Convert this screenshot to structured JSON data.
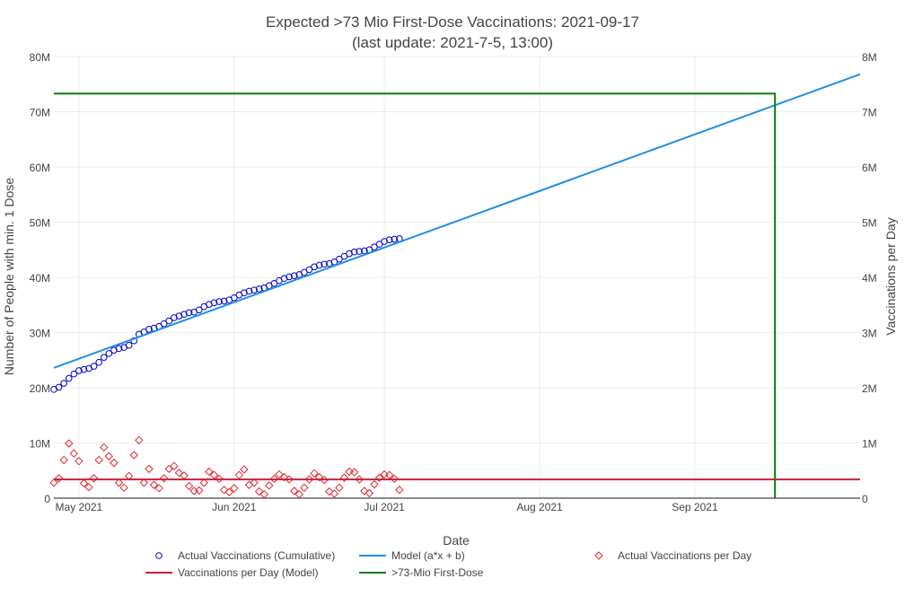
{
  "chart_data": {
    "type": "line",
    "title": "Expected >73 Mio First-Dose Vaccinations: 2021-09-17",
    "subtitle": "(last update: 2021-7-5, 13:00)",
    "xlabel": "Date",
    "ylabel": "Number of People with min. 1 Dose",
    "y2label": "Vaccinations per Day",
    "x_range": [
      "2021-04-26",
      "2021-10-04"
    ],
    "x_ticks": [
      {
        "date": "2021-05-01",
        "label": "May 2021"
      },
      {
        "date": "2021-06-01",
        "label": "Jun 2021"
      },
      {
        "date": "2021-07-01",
        "label": "Jul 2021"
      },
      {
        "date": "2021-08-01",
        "label": "Aug 2021"
      },
      {
        "date": "2021-09-01",
        "label": "Sep 2021"
      }
    ],
    "ylim": [
      0,
      80000000
    ],
    "y_ticks": [
      {
        "value": 0,
        "label": "0"
      },
      {
        "value": 10000000,
        "label": "10M"
      },
      {
        "value": 20000000,
        "label": "20M"
      },
      {
        "value": 30000000,
        "label": "30M"
      },
      {
        "value": 40000000,
        "label": "40M"
      },
      {
        "value": 50000000,
        "label": "50M"
      },
      {
        "value": 60000000,
        "label": "60M"
      },
      {
        "value": 70000000,
        "label": "70M"
      },
      {
        "value": 80000000,
        "label": "80M"
      }
    ],
    "y2lim": [
      0,
      8000000
    ],
    "y2_ticks": [
      {
        "value": 0,
        "label": "0"
      },
      {
        "value": 1000000,
        "label": "1M"
      },
      {
        "value": 2000000,
        "label": "2M"
      },
      {
        "value": 3000000,
        "label": "3M"
      },
      {
        "value": 4000000,
        "label": "4M"
      },
      {
        "value": 5000000,
        "label": "5M"
      },
      {
        "value": 6000000,
        "label": "6M"
      },
      {
        "value": 7000000,
        "label": "7M"
      },
      {
        "value": 8000000,
        "label": "8M"
      }
    ],
    "grid": true,
    "legend_position": "bottom",
    "series": [
      {
        "name": "Actual Vaccinations (Cumulative)",
        "kind": "markers",
        "marker": "circle-open",
        "axis": "y",
        "color": "#0000cd",
        "x": [
          "2021-04-26",
          "2021-04-27",
          "2021-04-28",
          "2021-04-29",
          "2021-04-30",
          "2021-05-01",
          "2021-05-02",
          "2021-05-03",
          "2021-05-04",
          "2021-05-05",
          "2021-05-06",
          "2021-05-07",
          "2021-05-08",
          "2021-05-09",
          "2021-05-10",
          "2021-05-11",
          "2021-05-12",
          "2021-05-13",
          "2021-05-14",
          "2021-05-15",
          "2021-05-16",
          "2021-05-17",
          "2021-05-18",
          "2021-05-19",
          "2021-05-20",
          "2021-05-21",
          "2021-05-22",
          "2021-05-23",
          "2021-05-24",
          "2021-05-25",
          "2021-05-26",
          "2021-05-27",
          "2021-05-28",
          "2021-05-29",
          "2021-05-30",
          "2021-05-31",
          "2021-06-01",
          "2021-06-02",
          "2021-06-03",
          "2021-06-04",
          "2021-06-05",
          "2021-06-06",
          "2021-06-07",
          "2021-06-08",
          "2021-06-09",
          "2021-06-10",
          "2021-06-11",
          "2021-06-12",
          "2021-06-13",
          "2021-06-14",
          "2021-06-15",
          "2021-06-16",
          "2021-06-17",
          "2021-06-18",
          "2021-06-19",
          "2021-06-20",
          "2021-06-21",
          "2021-06-22",
          "2021-06-23",
          "2021-06-24",
          "2021-06-25",
          "2021-06-26",
          "2021-06-27",
          "2021-06-28",
          "2021-06-29",
          "2021-06-30",
          "2021-07-01",
          "2021-07-02",
          "2021-07-03",
          "2021-07-04"
        ],
        "y": [
          19700000,
          20100000,
          20800000,
          21700000,
          22500000,
          23100000,
          23300000,
          23500000,
          23900000,
          24600000,
          25500000,
          26200000,
          26800000,
          27100000,
          27300000,
          27700000,
          28500000,
          29700000,
          30100000,
          30600000,
          30800000,
          31100000,
          31600000,
          32100000,
          32700000,
          33000000,
          33300000,
          33600000,
          33700000,
          34100000,
          34700000,
          35100000,
          35400000,
          35600000,
          35700000,
          35900000,
          36300000,
          36800000,
          37200000,
          37500000,
          37700000,
          37900000,
          38100000,
          38500000,
          38900000,
          39400000,
          39800000,
          40100000,
          40300000,
          40500000,
          40900000,
          41400000,
          41900000,
          42200000,
          42400000,
          42500000,
          42800000,
          43300000,
          43800000,
          44300000,
          44600000,
          44700000,
          44800000,
          45000000,
          45500000,
          46000000,
          46500000,
          46800000,
          46900000,
          47000000
        ]
      },
      {
        "name": "Model (a*x + b)",
        "kind": "line",
        "axis": "y",
        "color": "#1f8fe6",
        "x": [
          "2021-04-26",
          "2021-10-04"
        ],
        "y": [
          23600000,
          76800000
        ]
      },
      {
        "name": "Actual Vaccinations per Day",
        "kind": "markers",
        "marker": "diamond-open",
        "axis": "y2",
        "color": "#e3262b",
        "x": [
          "2021-04-26",
          "2021-04-27",
          "2021-04-28",
          "2021-04-29",
          "2021-04-30",
          "2021-05-01",
          "2021-05-02",
          "2021-05-03",
          "2021-05-04",
          "2021-05-05",
          "2021-05-06",
          "2021-05-07",
          "2021-05-08",
          "2021-05-09",
          "2021-05-10",
          "2021-05-11",
          "2021-05-12",
          "2021-05-13",
          "2021-05-14",
          "2021-05-15",
          "2021-05-16",
          "2021-05-17",
          "2021-05-18",
          "2021-05-19",
          "2021-05-20",
          "2021-05-21",
          "2021-05-22",
          "2021-05-23",
          "2021-05-24",
          "2021-05-25",
          "2021-05-26",
          "2021-05-27",
          "2021-05-28",
          "2021-05-29",
          "2021-05-30",
          "2021-05-31",
          "2021-06-01",
          "2021-06-02",
          "2021-06-03",
          "2021-06-04",
          "2021-06-05",
          "2021-06-06",
          "2021-06-07",
          "2021-06-08",
          "2021-06-09",
          "2021-06-10",
          "2021-06-11",
          "2021-06-12",
          "2021-06-13",
          "2021-06-14",
          "2021-06-15",
          "2021-06-16",
          "2021-06-17",
          "2021-06-18",
          "2021-06-19",
          "2021-06-20",
          "2021-06-21",
          "2021-06-22",
          "2021-06-23",
          "2021-06-24",
          "2021-06-25",
          "2021-06-26",
          "2021-06-27",
          "2021-06-28",
          "2021-06-29",
          "2021-06-30",
          "2021-07-01",
          "2021-07-02",
          "2021-07-03",
          "2021-07-04"
        ],
        "y": [
          280000,
          360000,
          690000,
          990000,
          810000,
          670000,
          270000,
          200000,
          360000,
          690000,
          920000,
          760000,
          640000,
          280000,
          190000,
          400000,
          780000,
          1050000,
          280000,
          530000,
          240000,
          180000,
          360000,
          530000,
          580000,
          460000,
          410000,
          220000,
          130000,
          140000,
          280000,
          480000,
          420000,
          350000,
          150000,
          110000,
          180000,
          420000,
          520000,
          240000,
          280000,
          120000,
          70000,
          230000,
          350000,
          430000,
          380000,
          340000,
          130000,
          70000,
          190000,
          340000,
          450000,
          380000,
          330000,
          120000,
          80000,
          190000,
          370000,
          480000,
          470000,
          340000,
          130000,
          90000,
          250000,
          370000,
          430000,
          420000,
          350000,
          150000
        ]
      },
      {
        "name": "Vaccinations per Day (Model)",
        "kind": "line",
        "axis": "y2",
        "color": "#c8203a",
        "x": [
          "2021-04-26",
          "2021-10-04"
        ],
        "y": [
          340000,
          340000
        ]
      },
      {
        "name": ">73-Mio First-Dose",
        "kind": "line",
        "axis": "y",
        "color": "#0a7d0a",
        "x": [
          "2021-04-26",
          "2021-09-17",
          "2021-09-17"
        ],
        "y": [
          73300000,
          73300000,
          0
        ]
      }
    ],
    "legend": [
      {
        "label": "Actual Vaccinations (Cumulative)",
        "symbol": "circle-open",
        "color": "#0000cd"
      },
      {
        "label": "Model (a*x + b)",
        "symbol": "line",
        "color": "#1f8fe6"
      },
      {
        "label": "Actual Vaccinations per Day",
        "symbol": "diamond-open",
        "color": "#e3262b"
      },
      {
        "label": "Vaccinations per Day (Model)",
        "symbol": "line",
        "color": "#c8203a"
      },
      {
        "label": ">73-Mio First-Dose",
        "symbol": "line",
        "color": "#0a7d0a"
      }
    ]
  }
}
